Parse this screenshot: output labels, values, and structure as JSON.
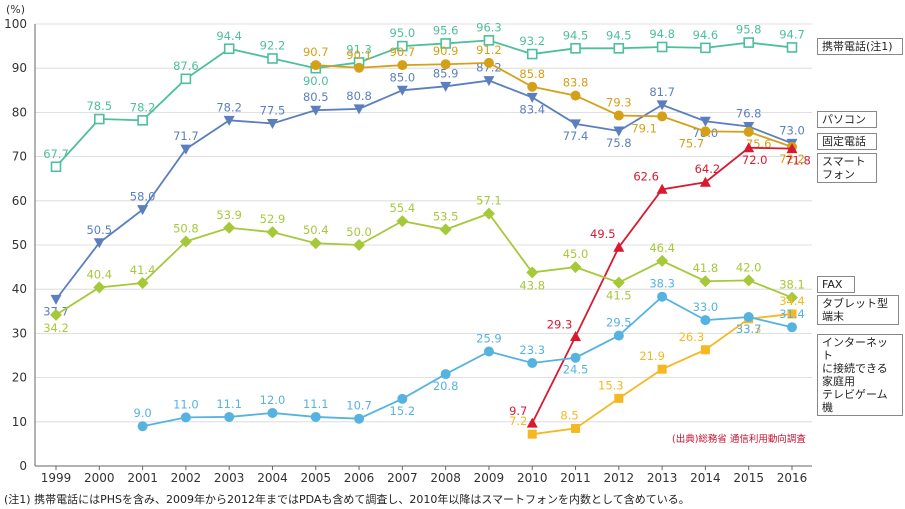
{
  "chart_data": {
    "type": "line",
    "ylabel": "(%)",
    "ylim": [
      0,
      100
    ],
    "yticks": [
      0,
      10,
      20,
      30,
      40,
      50,
      60,
      70,
      80,
      90,
      100
    ],
    "x": [
      "1999",
      "2000",
      "2001",
      "2002",
      "2003",
      "2004",
      "2005",
      "2006",
      "2007",
      "2008",
      "2009",
      "2010",
      "2011",
      "2012",
      "2013",
      "2014",
      "2015",
      "2016"
    ],
    "grid": "horizontal",
    "legend": "right",
    "series": [
      {
        "name": "携帯電話(注1)",
        "color": "#4dbf9c",
        "marker": "square-open",
        "values": [
          67.7,
          78.5,
          78.2,
          87.6,
          94.4,
          92.2,
          90.0,
          91.3,
          95.0,
          95.6,
          96.3,
          93.2,
          94.5,
          94.5,
          94.8,
          94.6,
          95.8,
          94.7
        ],
        "labels": [
          "67.7",
          "78.5",
          "78.2",
          "87.6",
          "94.4",
          "92.2",
          "90.0",
          "91.3",
          "95.0",
          "95.6",
          "96.3",
          "93.2",
          "94.5",
          "94.5",
          "94.8",
          "94.6",
          "95.8",
          "94.7"
        ]
      },
      {
        "name": "パソコン",
        "color": "#5b7fbe",
        "marker": "triangle-down",
        "values": [
          37.7,
          50.5,
          58.0,
          71.7,
          78.2,
          77.5,
          80.5,
          80.8,
          85.0,
          85.9,
          87.2,
          83.4,
          77.4,
          75.8,
          81.7,
          78.0,
          76.8,
          73.0
        ],
        "labels": [
          "37.7",
          "50.5",
          "58.0",
          "71.7",
          "78.2",
          "77.5",
          "80.5",
          "80.8",
          "85.0",
          "85.9",
          "87.2",
          "83.4",
          "77.4",
          "75.8",
          "81.7",
          "78.0",
          "76.8",
          "73.0"
        ]
      },
      {
        "name": "固定電話",
        "color": "#d4a017",
        "marker": "circle",
        "values": [
          null,
          null,
          null,
          null,
          null,
          null,
          90.7,
          90.1,
          90.7,
          90.9,
          91.2,
          85.8,
          83.8,
          79.3,
          79.1,
          75.7,
          75.6,
          72.2
        ],
        "labels": [
          null,
          null,
          null,
          null,
          null,
          null,
          "90.7",
          "90.1",
          "90.7",
          "90.9",
          "91.2",
          "85.8",
          "83.8",
          "79.3",
          "79.1",
          "75.7",
          "75.6",
          "72.2"
        ]
      },
      {
        "name": "スマートフォン",
        "color": "#d9192f",
        "marker": "triangle-up",
        "values": [
          null,
          null,
          null,
          null,
          null,
          null,
          null,
          null,
          null,
          null,
          null,
          9.7,
          29.3,
          49.5,
          62.6,
          64.2,
          72.0,
          71.8
        ],
        "labels": [
          null,
          null,
          null,
          null,
          null,
          null,
          null,
          null,
          null,
          null,
          null,
          "9.7",
          "29.3",
          "49.5",
          "62.6",
          "64.2",
          "72.0",
          "71.8"
        ]
      },
      {
        "name": "FAX",
        "color": "#a6c93a",
        "marker": "diamond",
        "values": [
          34.2,
          40.4,
          41.4,
          50.8,
          53.9,
          52.9,
          50.4,
          50.0,
          55.4,
          53.5,
          57.1,
          43.8,
          45.0,
          41.5,
          46.4,
          41.8,
          42.0,
          38.1
        ],
        "labels": [
          "34.2",
          "40.4",
          "41.4",
          "50.8",
          "53.9",
          "52.9",
          "50.4",
          "50.0",
          "55.4",
          "53.5",
          "57.1",
          "43.8",
          "45.0",
          "41.5",
          "46.4",
          "41.8",
          "42.0",
          "38.1"
        ]
      },
      {
        "name": "タブレット型端末",
        "color": "#f5b820",
        "marker": "square",
        "values": [
          null,
          null,
          null,
          null,
          null,
          null,
          null,
          null,
          null,
          null,
          null,
          7.2,
          8.5,
          15.3,
          21.9,
          26.3,
          33.3,
          34.4
        ],
        "labels": [
          null,
          null,
          null,
          null,
          null,
          null,
          null,
          null,
          null,
          null,
          null,
          "7.2",
          "8.5",
          "15.3",
          "21.9",
          "26.3",
          "33.3",
          "34.4"
        ]
      },
      {
        "name": "インターネットに接続できる家庭用テレビゲーム機",
        "color": "#56b3e0",
        "marker": "circle",
        "values": [
          null,
          null,
          9.0,
          11.0,
          11.1,
          12.0,
          11.1,
          10.7,
          15.2,
          20.8,
          25.9,
          23.3,
          24.5,
          29.5,
          38.3,
          33.0,
          33.7,
          31.4
        ],
        "labels": [
          null,
          null,
          "9.0",
          "11.0",
          "11.1",
          "12.0",
          "11.1",
          "10.7",
          "15.2",
          "20.8",
          "25.9",
          "23.3",
          "24.5",
          "29.5",
          "38.3",
          "33.0",
          "33.7",
          "31.4"
        ]
      }
    ]
  },
  "legend": [
    {
      "text": "携帯電話(注1)",
      "border": "#888888"
    },
    {
      "text": "パソコン",
      "border": "#5b7fbe"
    },
    {
      "text": "固定電話",
      "border": "#d4a017"
    },
    {
      "text": "スマート\nフォン",
      "border": "#d9192f"
    },
    {
      "text": "FAX",
      "border": "#a6c93a"
    },
    {
      "text": "タブレット型\n端末",
      "border": "#f5b820"
    },
    {
      "text": "インターネット\nに接続できる\n家庭用\nテレビゲーム機",
      "border": "#56b3e0"
    }
  ],
  "source": "(出典)総務省 通信利用動向調査",
  "note": "(注1) 携帯電話にはPHSを含み、2009年から2012年まではPDAも含めて調査し、2010年以降はスマートフォンを内数として含めている。"
}
